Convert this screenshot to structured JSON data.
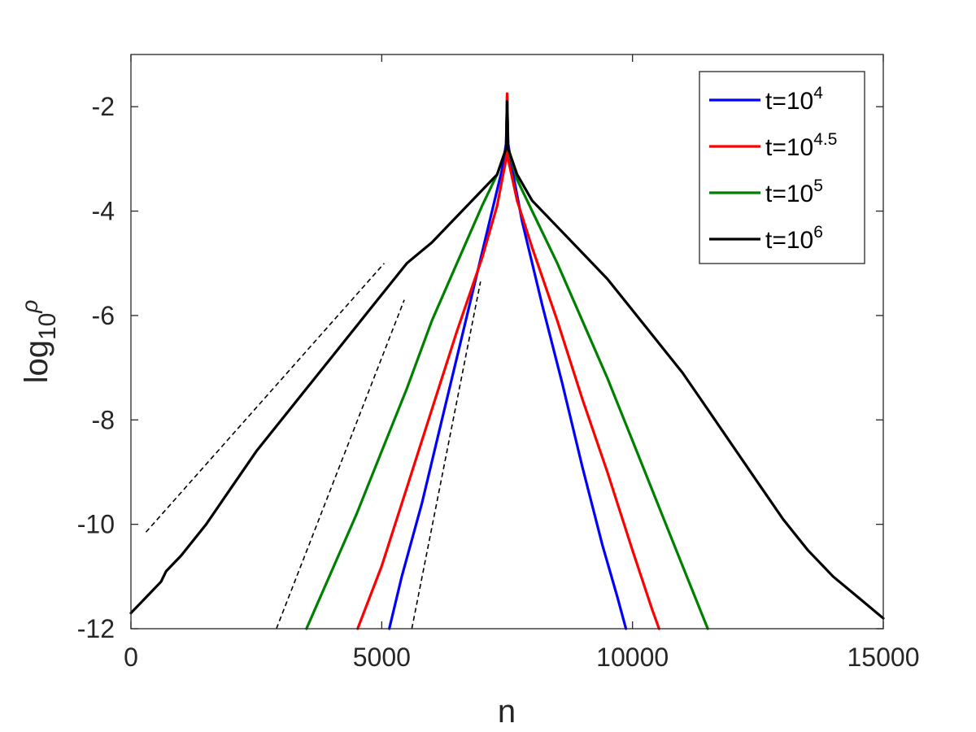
{
  "chart_data": {
    "type": "line",
    "xlabel": "n",
    "ylabel": {
      "base": "log",
      "sub": "10",
      "sup": "ρ"
    },
    "xlim": [
      0,
      15000
    ],
    "ylim": [
      -12,
      -1
    ],
    "xticks": [
      0,
      5000,
      10000,
      15000
    ],
    "xtick_labels": [
      "0",
      "5000",
      "10000",
      "15000"
    ],
    "yticks": [
      -2,
      -4,
      -6,
      -8,
      -10,
      -12
    ],
    "ytick_labels": [
      "-2",
      "-4",
      "-6",
      "-8",
      "-10",
      "-12"
    ],
    "grid": false,
    "legend_position": "top-right",
    "series": [
      {
        "name": {
          "base": "t=10",
          "sup": "4"
        },
        "color": "#0000ff",
        "x": [
          5150,
          5400,
          5800,
          6200,
          6600,
          6900,
          7200,
          7400,
          7480,
          7500,
          7520,
          7600,
          7800,
          8200,
          8600,
          9000,
          9400,
          9700,
          9870
        ],
        "y": [
          -12.0,
          -11.0,
          -9.6,
          -8.0,
          -6.4,
          -5.2,
          -4.0,
          -3.2,
          -2.7,
          -1.8,
          -2.7,
          -3.2,
          -4.2,
          -5.8,
          -7.3,
          -8.9,
          -10.4,
          -11.4,
          -12.0
        ]
      },
      {
        "name": {
          "base": "t=10",
          "sup": "4.5"
        },
        "color": "#ff0000",
        "x": [
          4520,
          5000,
          5500,
          6000,
          6500,
          7000,
          7300,
          7480,
          7500,
          7520,
          7700,
          8000,
          8500,
          9000,
          9500,
          10000,
          10380,
          10530
        ],
        "y": [
          -12.0,
          -10.8,
          -9.3,
          -7.8,
          -6.3,
          -4.9,
          -3.9,
          -3.0,
          -1.75,
          -3.0,
          -3.8,
          -4.7,
          -6.1,
          -7.6,
          -9.0,
          -10.5,
          -11.6,
          -12.0
        ]
      },
      {
        "name": {
          "base": "t=10",
          "sup": "5"
        },
        "color": "#008000",
        "x": [
          3500,
          4000,
          4500,
          5000,
          5500,
          6000,
          6500,
          7000,
          7300,
          7480,
          7500,
          7520,
          7700,
          8000,
          8500,
          9000,
          9500,
          10000,
          10500,
          11000,
          11500
        ],
        "y": [
          -12.0,
          -10.9,
          -9.8,
          -8.6,
          -7.4,
          -6.1,
          -5.0,
          -3.9,
          -3.3,
          -2.8,
          -1.9,
          -2.8,
          -3.4,
          -4.0,
          -5.0,
          -6.1,
          -7.2,
          -8.4,
          -9.6,
          -10.8,
          -12.0
        ]
      },
      {
        "name": {
          "base": "t=10",
          "sup": "6"
        },
        "color": "#000000",
        "x": [
          0,
          300,
          600,
          700,
          1000,
          1500,
          2000,
          2500,
          3000,
          3500,
          4000,
          4500,
          5000,
          5500,
          6000,
          6500,
          7000,
          7300,
          7480,
          7500,
          7520,
          7700,
          8000,
          8500,
          9000,
          9500,
          10000,
          10500,
          11000,
          11500,
          12000,
          12500,
          13000,
          13500,
          14000,
          14500,
          15000
        ],
        "y": [
          -11.7,
          -11.4,
          -11.1,
          -10.9,
          -10.6,
          -10.0,
          -9.3,
          -8.6,
          -8.0,
          -7.4,
          -6.8,
          -6.2,
          -5.6,
          -5.0,
          -4.6,
          -4.1,
          -3.6,
          -3.3,
          -2.8,
          -1.9,
          -2.8,
          -3.3,
          -3.8,
          -4.3,
          -4.8,
          -5.3,
          -5.9,
          -6.5,
          -7.1,
          -7.8,
          -8.5,
          -9.2,
          -9.9,
          -10.5,
          -11.0,
          -11.4,
          -11.8
        ]
      }
    ],
    "reference_lines": [
      {
        "x": [
          300,
          5050
        ],
        "y": [
          -10.15,
          -5.0
        ],
        "color": "#000000",
        "dashed": true
      },
      {
        "x": [
          2900,
          5450
        ],
        "y": [
          -12.0,
          -5.7
        ],
        "color": "#000000",
        "dashed": true
      },
      {
        "x": [
          5600,
          6970
        ],
        "y": [
          -12.0,
          -5.35
        ],
        "color": "#000000",
        "dashed": true
      }
    ]
  }
}
